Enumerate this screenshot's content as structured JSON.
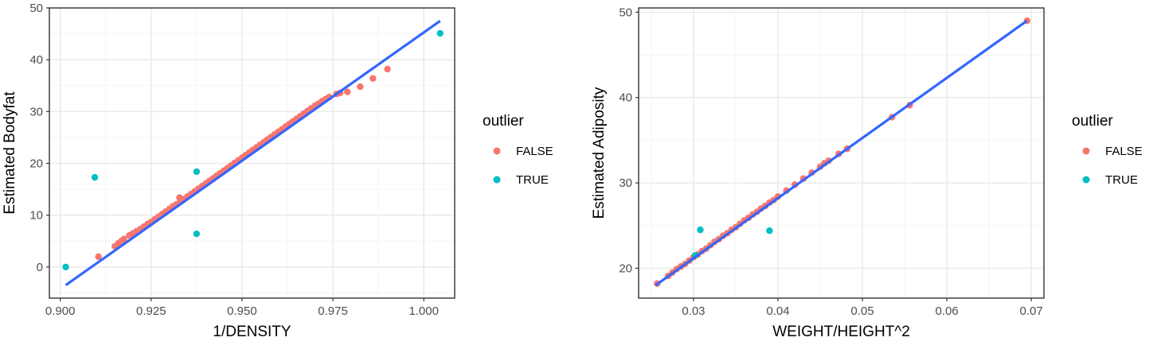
{
  "chart_data": [
    {
      "type": "scatter",
      "xlabel": "1/DENSITY",
      "ylabel": "Estimated Bodyfat",
      "xlim": [
        0.897,
        1.0085
      ],
      "ylim": [
        -6.0,
        50.0
      ],
      "xticks": [
        0.9,
        0.925,
        0.95,
        0.975,
        1.0
      ],
      "xtick_labels": [
        "0.900",
        "0.925",
        "0.950",
        "0.975",
        "1.000"
      ],
      "yticks": [
        0,
        10,
        20,
        30,
        40,
        50
      ],
      "ytick_labels": [
        "0",
        "10",
        "20",
        "30",
        "40",
        "50"
      ],
      "grid": true,
      "legend": {
        "title": "outlier",
        "position": "right",
        "labels": [
          "FALSE",
          "TRUE"
        ]
      },
      "fit_line": {
        "x": [
          0.9015,
          1.0045
        ],
        "y": [
          -3.5,
          47.5
        ],
        "color": "#3366ff"
      },
      "series": [
        {
          "name": "FALSE",
          "color": "#f8766d",
          "points": [
            [
              0.9105,
              2.0
            ],
            [
              0.915,
              4.0
            ],
            [
              0.916,
              4.6
            ],
            [
              0.9168,
              5.0
            ],
            [
              0.9175,
              5.4
            ],
            [
              0.919,
              6.1
            ],
            [
              0.92,
              6.5
            ],
            [
              0.921,
              6.9
            ],
            [
              0.922,
              7.3
            ],
            [
              0.923,
              7.8
            ],
            [
              0.924,
              8.3
            ],
            [
              0.925,
              8.7
            ],
            [
              0.926,
              9.2
            ],
            [
              0.927,
              9.7
            ],
            [
              0.928,
              10.2
            ],
            [
              0.929,
              10.7
            ],
            [
              0.93,
              11.2
            ],
            [
              0.931,
              11.7
            ],
            [
              0.932,
              12.1
            ],
            [
              0.933,
              12.6
            ],
            [
              0.9328,
              13.4
            ],
            [
              0.934,
              13.1
            ],
            [
              0.935,
              13.6
            ],
            [
              0.936,
              14.1
            ],
            [
              0.937,
              14.6
            ],
            [
              0.938,
              15.1
            ],
            [
              0.939,
              15.6
            ],
            [
              0.94,
              16.1
            ],
            [
              0.941,
              16.6
            ],
            [
              0.942,
              17.1
            ],
            [
              0.943,
              17.6
            ],
            [
              0.944,
              18.1
            ],
            [
              0.945,
              18.6
            ],
            [
              0.946,
              19.1
            ],
            [
              0.947,
              19.6
            ],
            [
              0.948,
              20.1
            ],
            [
              0.949,
              20.6
            ],
            [
              0.95,
              21.1
            ],
            [
              0.951,
              21.6
            ],
            [
              0.952,
              22.1
            ],
            [
              0.953,
              22.6
            ],
            [
              0.954,
              23.1
            ],
            [
              0.955,
              23.6
            ],
            [
              0.956,
              24.1
            ],
            [
              0.957,
              24.6
            ],
            [
              0.958,
              25.1
            ],
            [
              0.959,
              25.6
            ],
            [
              0.96,
              26.1
            ],
            [
              0.961,
              26.6
            ],
            [
              0.962,
              27.1
            ],
            [
              0.963,
              27.6
            ],
            [
              0.964,
              28.1
            ],
            [
              0.965,
              28.6
            ],
            [
              0.966,
              29.1
            ],
            [
              0.967,
              29.6
            ],
            [
              0.968,
              30.1
            ],
            [
              0.969,
              30.6
            ],
            [
              0.97,
              31.1
            ],
            [
              0.971,
              31.5
            ],
            [
              0.972,
              32.0
            ],
            [
              0.973,
              32.4
            ],
            [
              0.974,
              32.8
            ],
            [
              0.976,
              33.4
            ],
            [
              0.977,
              33.6
            ],
            [
              0.979,
              33.8
            ],
            [
              0.9825,
              34.8
            ],
            [
              0.986,
              36.4
            ],
            [
              0.99,
              38.2
            ]
          ]
        },
        {
          "name": "TRUE",
          "color": "#00bfc4",
          "points": [
            [
              0.9015,
              0.0
            ],
            [
              0.9095,
              17.3
            ],
            [
              0.9375,
              18.4
            ],
            [
              0.9375,
              6.4
            ],
            [
              1.0045,
              45.1
            ]
          ]
        }
      ]
    },
    {
      "type": "scatter",
      "xlabel": "WEIGHT/HEIGHT^2",
      "ylabel": "Estimated Adiposity",
      "xlim": [
        0.0235,
        0.0715
      ],
      "ylim": [
        16.5,
        50.5
      ],
      "xticks": [
        0.03,
        0.04,
        0.05,
        0.06,
        0.07
      ],
      "xtick_labels": [
        "0.03",
        "0.04",
        "0.05",
        "0.06",
        "0.07"
      ],
      "yticks": [
        20,
        30,
        40,
        50
      ],
      "ytick_labels": [
        "20",
        "30",
        "40",
        "50"
      ],
      "grid": true,
      "legend": {
        "title": "outlier",
        "position": "right",
        "labels": [
          "FALSE",
          "TRUE"
        ]
      },
      "fit_line": {
        "x": [
          0.0255,
          0.0695
        ],
        "y": [
          18.0,
          49.0
        ],
        "color": "#3366ff"
      },
      "series": [
        {
          "name": "FALSE",
          "color": "#f8766d",
          "points": [
            [
              0.0257,
              18.2
            ],
            [
              0.027,
              19.1
            ],
            [
              0.0275,
              19.5
            ],
            [
              0.028,
              19.9
            ],
            [
              0.0285,
              20.2
            ],
            [
              0.029,
              20.5
            ],
            [
              0.0295,
              20.9
            ],
            [
              0.03,
              21.3
            ],
            [
              0.0305,
              21.6
            ],
            [
              0.031,
              22.0
            ],
            [
              0.0315,
              22.3
            ],
            [
              0.032,
              22.7
            ],
            [
              0.0325,
              23.1
            ],
            [
              0.033,
              23.4
            ],
            [
              0.0335,
              23.8
            ],
            [
              0.034,
              24.1
            ],
            [
              0.0345,
              24.5
            ],
            [
              0.035,
              24.8
            ],
            [
              0.0355,
              25.2
            ],
            [
              0.036,
              25.6
            ],
            [
              0.0365,
              25.9
            ],
            [
              0.037,
              26.3
            ],
            [
              0.0375,
              26.6
            ],
            [
              0.038,
              27.0
            ],
            [
              0.0385,
              27.3
            ],
            [
              0.039,
              27.7
            ],
            [
              0.0395,
              28.0
            ],
            [
              0.04,
              28.4
            ],
            [
              0.041,
              29.1
            ],
            [
              0.042,
              29.8
            ],
            [
              0.043,
              30.5
            ],
            [
              0.044,
              31.2
            ],
            [
              0.045,
              31.9
            ],
            [
              0.0455,
              32.3
            ],
            [
              0.046,
              32.6
            ],
            [
              0.0472,
              33.4
            ],
            [
              0.0482,
              34.0
            ],
            [
              0.0535,
              37.7
            ],
            [
              0.0556,
              39.1
            ],
            [
              0.0695,
              49.0
            ]
          ]
        },
        {
          "name": "TRUE",
          "color": "#00bfc4",
          "points": [
            [
              0.0302,
              21.5
            ],
            [
              0.0308,
              24.5
            ],
            [
              0.039,
              24.4
            ]
          ]
        }
      ]
    }
  ]
}
